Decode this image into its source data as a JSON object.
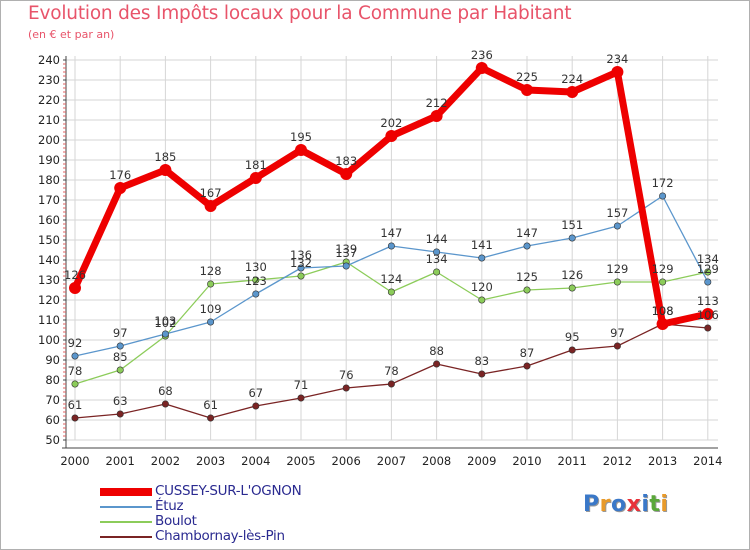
{
  "title": "Evolution des Impôts locaux pour la Commune par Habitant",
  "subtitle": "(en € et par an)",
  "logo": {
    "text": "Proxiti",
    "letter_colors": [
      "#3a78c8",
      "#e89a2a",
      "#3a78c8",
      "#e8323a",
      "#3a78c8",
      "#5aa83a",
      "#e89a2a"
    ]
  },
  "chart_data": {
    "type": "line",
    "x": [
      "2000",
      "2001",
      "2002",
      "2003",
      "2004",
      "2005",
      "2006",
      "2007",
      "2008",
      "2009",
      "2010",
      "2011",
      "2012",
      "2013",
      "2014"
    ],
    "ylim": [
      50,
      240
    ],
    "yticks": [
      50,
      60,
      70,
      80,
      90,
      100,
      110,
      120,
      130,
      140,
      150,
      160,
      170,
      180,
      190,
      200,
      210,
      220,
      230,
      240
    ],
    "grid": true,
    "series": [
      {
        "name": "CUSSEY-SUR-L'OGNON",
        "color": "#ee0000",
        "values": [
          126,
          176,
          185,
          167,
          181,
          195,
          183,
          202,
          212,
          236,
          225,
          224,
          234,
          108,
          113
        ],
        "labels": [
          "126",
          "176",
          "185",
          "167",
          "181",
          "195",
          "183",
          "202",
          "212",
          "236",
          "225",
          "224",
          "234",
          "108",
          "113"
        ]
      },
      {
        "name": "Étuz",
        "color": "#5b96cc",
        "values": [
          92,
          97,
          103,
          109,
          123,
          136,
          137,
          147,
          144,
          141,
          147,
          151,
          157,
          172,
          129
        ],
        "labels": [
          "92",
          "97",
          "103",
          "109",
          "123",
          "136",
          "137",
          "147",
          "144",
          "141",
          "147",
          "151",
          "157",
          "172",
          "129"
        ]
      },
      {
        "name": "Boulot",
        "color": "#8ccc5a",
        "values": [
          78,
          85,
          102,
          128,
          130,
          132,
          139,
          124,
          134,
          120,
          125,
          126,
          129,
          129,
          134
        ],
        "labels": [
          "78",
          "85",
          "102",
          "128",
          "130",
          "132",
          "139",
          "124",
          "134",
          "120",
          "125",
          "126",
          "129",
          "129",
          "134"
        ]
      },
      {
        "name": "Chambornay-lès-Pin",
        "color": "#7a2424",
        "values": [
          61,
          63,
          68,
          61,
          67,
          71,
          76,
          78,
          88,
          83,
          87,
          95,
          97,
          108,
          106
        ],
        "labels": [
          "61",
          "63",
          "68",
          "61",
          "67",
          "71",
          "76",
          "78",
          "88",
          "83",
          "87",
          "95",
          "97",
          "108",
          "106"
        ]
      }
    ],
    "legend_position": "bottom-left"
  }
}
